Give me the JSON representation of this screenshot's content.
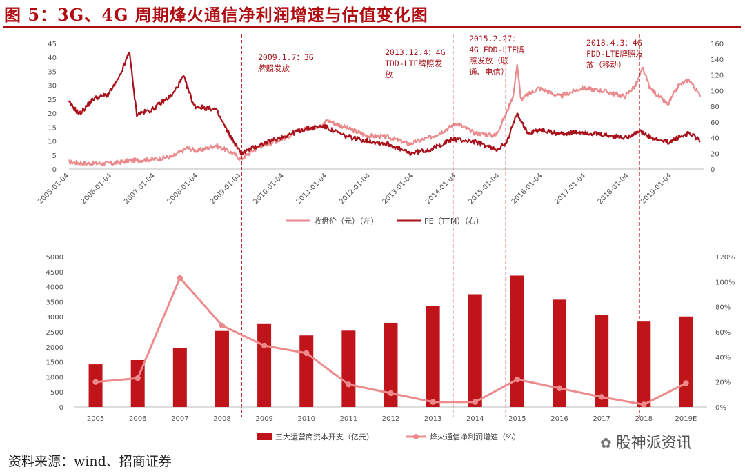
{
  "figure_title": "图 5：3G、4G 周期烽火通信净利润增速与估值变化图",
  "source_note": "资料来源：wind、招商证券",
  "watermark": "股神派资讯",
  "colors": {
    "dark_red": "#a8101a",
    "light_red": "#ea8a8c",
    "accent": "#b00d12"
  },
  "chart_data": [
    {
      "type": "line",
      "dual_axis": true,
      "x_dates": [
        "2005-01-04",
        "2006-01-04",
        "2007-01-04",
        "2008-01-04",
        "2009-01-04",
        "2010-01-04",
        "2011-01-04",
        "2012-01-04",
        "2013-01-04",
        "2014-01-04",
        "2015-01-04",
        "2016-01-04",
        "2017-01-04",
        "2018-01-04",
        "2019-01-04"
      ],
      "xlim": [
        "2005-01-04",
        "2019-09-30"
      ],
      "y_left_ticks": [
        "0",
        "5",
        "10",
        "15",
        "20",
        "25",
        "30",
        "35",
        "40",
        "45"
      ],
      "y_left_range": [
        0,
        45
      ],
      "y_right_ticks": [
        "0",
        "20",
        "40",
        "60",
        "80",
        "100",
        "120",
        "140",
        "160"
      ],
      "y_right_range": [
        0,
        160
      ],
      "legend_position": "bottom",
      "series": [
        {
          "name": "收盘价（元）（左）",
          "axis": "left",
          "color": "#ea8a8c",
          "points": [
            [
              "2005-01",
              2.5
            ],
            [
              "2005-06",
              2.0
            ],
            [
              "2006-01",
              2.0
            ],
            [
              "2006-06",
              3.0
            ],
            [
              "2007-01",
              3.5
            ],
            [
              "2007-06",
              4.5
            ],
            [
              "2007-10",
              7.5
            ],
            [
              "2008-01",
              6.5
            ],
            [
              "2008-06",
              8.5
            ],
            [
              "2008-11",
              5.5
            ],
            [
              "2009-01",
              3.5
            ],
            [
              "2009-06",
              8.0
            ],
            [
              "2009-12",
              10.5
            ],
            [
              "2010-06",
              14.0
            ],
            [
              "2010-12",
              16.0
            ],
            [
              "2011-01",
              17.5
            ],
            [
              "2011-06",
              15.0
            ],
            [
              "2011-12",
              12.0
            ],
            [
              "2012-06",
              11.5
            ],
            [
              "2012-12",
              9.0
            ],
            [
              "2013-06",
              11.5
            ],
            [
              "2013-10",
              14.0
            ],
            [
              "2014-01",
              16.5
            ],
            [
              "2014-06",
              13.0
            ],
            [
              "2014-12",
              12.0
            ],
            [
              "2015-03",
              20.0
            ],
            [
              "2015-05",
              27.0
            ],
            [
              "2015-06",
              38.0
            ],
            [
              "2015-07",
              25.0
            ],
            [
              "2015-12",
              29.0
            ],
            [
              "2016-06",
              26.0
            ],
            [
              "2016-12",
              29.0
            ],
            [
              "2017-06",
              28.0
            ],
            [
              "2017-12",
              26.0
            ],
            [
              "2018-03",
              30.0
            ],
            [
              "2018-05",
              36.0
            ],
            [
              "2018-07",
              29.0
            ],
            [
              "2018-12",
              23.0
            ],
            [
              "2019-03",
              30.0
            ],
            [
              "2019-06",
              32.0
            ],
            [
              "2019-09",
              26.0
            ]
          ]
        },
        {
          "name": "PE（TTM）（右）",
          "axis": "right",
          "color": "#a8101a",
          "points": [
            [
              "2005-01",
              85
            ],
            [
              "2005-04",
              70
            ],
            [
              "2005-08",
              90
            ],
            [
              "2005-12",
              95
            ],
            [
              "2006-03",
              115
            ],
            [
              "2006-06",
              150
            ],
            [
              "2006-07",
              105
            ],
            [
              "2006-08",
              70
            ],
            [
              "2006-12",
              75
            ],
            [
              "2007-06",
              95
            ],
            [
              "2007-09",
              118
            ],
            [
              "2007-12",
              80
            ],
            [
              "2008-06",
              76
            ],
            [
              "2008-09",
              50
            ],
            [
              "2009-01",
              20
            ],
            [
              "2009-06",
              30
            ],
            [
              "2009-12",
              40
            ],
            [
              "2010-06",
              50
            ],
            [
              "2010-12",
              55
            ],
            [
              "2011-06",
              42
            ],
            [
              "2011-12",
              36
            ],
            [
              "2012-06",
              32
            ],
            [
              "2012-12",
              20
            ],
            [
              "2013-06",
              25
            ],
            [
              "2013-12",
              38
            ],
            [
              "2014-06",
              35
            ],
            [
              "2014-12",
              25
            ],
            [
              "2015-03",
              32
            ],
            [
              "2015-06",
              72
            ],
            [
              "2015-09",
              45
            ],
            [
              "2015-12",
              50
            ],
            [
              "2016-06",
              45
            ],
            [
              "2016-12",
              47
            ],
            [
              "2017-06",
              43
            ],
            [
              "2017-12",
              40
            ],
            [
              "2018-04",
              48
            ],
            [
              "2018-08",
              38
            ],
            [
              "2018-12",
              34
            ],
            [
              "2019-04",
              42
            ],
            [
              "2019-06",
              46
            ],
            [
              "2019-09",
              36
            ]
          ]
        }
      ],
      "event_lines": [
        "2009-01-07",
        "2013-12-04",
        "2015-02-27",
        "2018-04-03"
      ],
      "annotations": [
        {
          "lines": [
            "2009.1.7：3G",
            "牌照发放"
          ]
        },
        {
          "lines": [
            "2013.12.4：4G",
            "TDD-LTE牌照发",
            "放"
          ]
        },
        {
          "lines": [
            "2015.2.27：",
            "4G FDD-LTE牌",
            "照发放（联",
            "通、电信）"
          ]
        },
        {
          "lines": [
            "2018.4.3：4G",
            "FDD-LTE牌照发",
            "放（移动）"
          ]
        }
      ]
    },
    {
      "type": "bar",
      "dual_axis": true,
      "categories": [
        "2005",
        "2006",
        "2007",
        "2008",
        "2009",
        "2010",
        "2011",
        "2012",
        "2013",
        "2014",
        "2015",
        "2016",
        "2017",
        "2018",
        "2019E"
      ],
      "y_left_ticks": [
        "0",
        "500",
        "1000",
        "1500",
        "2000",
        "2500",
        "3000",
        "3500",
        "4000",
        "4500",
        "5000"
      ],
      "y_left_range": [
        0,
        5000
      ],
      "y_right_ticks": [
        "0%",
        "20%",
        "40%",
        "60%",
        "80%",
        "100%",
        "120%"
      ],
      "y_right_range": [
        0,
        120
      ],
      "legend_position": "bottom",
      "series": [
        {
          "name": "三大运营商资本开支（亿元）",
          "type": "bar",
          "axis": "left",
          "color": "#c0141b",
          "values": [
            1420,
            1560,
            1950,
            2530,
            2780,
            2380,
            2540,
            2800,
            3370,
            3750,
            4370,
            3570,
            3050,
            2840,
            3010
          ]
        },
        {
          "name": "烽火通信净利润增速（%）",
          "type": "line",
          "axis": "right",
          "color": "#ec8a8c",
          "values": [
            20,
            23,
            103,
            65,
            49,
            43,
            18,
            11,
            4,
            4,
            22,
            15,
            8,
            2,
            19
          ]
        }
      ],
      "event_lines": [
        "2009",
        "2014",
        "2015",
        "2018"
      ]
    }
  ]
}
